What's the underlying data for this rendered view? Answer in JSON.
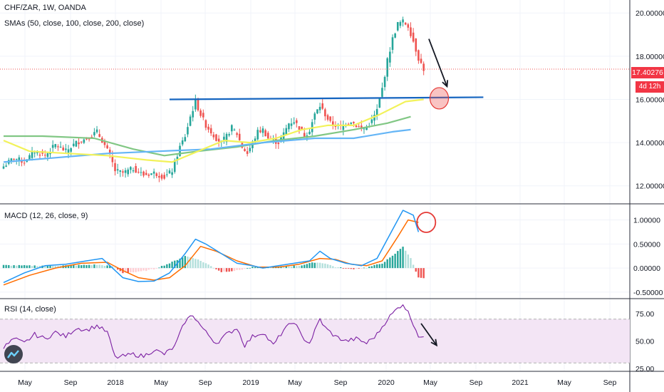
{
  "header": {
    "symbol_line": "CHF/ZAR, 1W, OANDA",
    "sma_line": "SMAs (50, close, 100, close, 200, close)"
  },
  "price_tag": {
    "value": "17.40276",
    "countdown": "4d 12h"
  },
  "macd_legend": "MACD (12, 26, close, 9)",
  "rsi_legend": "RSI (14, close)",
  "colors": {
    "up": "#26a69a",
    "down": "#ef5350",
    "sma50": "#f2f25a",
    "sma100": "#81c784",
    "sma200": "#64b5f6",
    "trendline": "#1565c0",
    "macd": "#2196f3",
    "signal": "#ff6d00",
    "rsi": "#7b1fa2",
    "rsi_band": "#f3e5f5"
  },
  "chart_data": [
    {
      "type": "candlestick",
      "name": "price",
      "ylim": [
        11.2,
        20.6
      ],
      "y_ticks": [
        "20.00000",
        "18.00000",
        "16.00000",
        "14.00000",
        "12.00000"
      ],
      "x_ticks": [
        "May",
        "Sep",
        "2018",
        "May",
        "Sep",
        "2019",
        "May",
        "Sep",
        "2020",
        "May",
        "Sep",
        "2021",
        "May",
        "Sep"
      ],
      "weekly_close_path": [
        [
          0,
          12.9
        ],
        [
          4,
          13.3
        ],
        [
          8,
          13.1
        ],
        [
          12,
          13.6
        ],
        [
          16,
          13.4
        ],
        [
          20,
          13.9
        ],
        [
          24,
          13.6
        ],
        [
          28,
          14.0
        ],
        [
          32,
          14.2
        ],
        [
          36,
          14.5
        ],
        [
          38,
          14.1
        ],
        [
          41,
          13.4
        ],
        [
          43,
          12.7
        ],
        [
          46,
          12.6
        ],
        [
          50,
          12.8
        ],
        [
          54,
          12.5
        ],
        [
          58,
          12.6
        ],
        [
          62,
          12.4
        ],
        [
          65,
          12.7
        ],
        [
          68,
          13.8
        ],
        [
          70,
          14.3
        ],
        [
          72,
          15.2
        ],
        [
          74,
          15.9
        ],
        [
          76,
          15.3
        ],
        [
          78,
          14.8
        ],
        [
          80,
          14.5
        ],
        [
          82,
          14.2
        ],
        [
          84,
          14.0
        ],
        [
          86,
          14.3
        ],
        [
          88,
          14.7
        ],
        [
          90,
          14.4
        ],
        [
          92,
          13.8
        ],
        [
          94,
          13.5
        ],
        [
          96,
          14.0
        ],
        [
          98,
          14.5
        ],
        [
          100,
          14.6
        ],
        [
          102,
          14.2
        ],
        [
          104,
          14.1
        ],
        [
          106,
          14.0
        ],
        [
          108,
          14.4
        ],
        [
          110,
          14.9
        ],
        [
          112,
          15.0
        ],
        [
          114,
          14.7
        ],
        [
          116,
          14.3
        ],
        [
          118,
          14.6
        ],
        [
          120,
          15.3
        ],
        [
          122,
          15.7
        ],
        [
          124,
          15.3
        ],
        [
          126,
          14.9
        ],
        [
          128,
          14.8
        ],
        [
          130,
          14.7
        ],
        [
          132,
          14.9
        ],
        [
          134,
          15.0
        ],
        [
          136,
          14.8
        ],
        [
          138,
          14.6
        ],
        [
          140,
          14.7
        ],
        [
          142,
          15.0
        ],
        [
          144,
          15.5
        ],
        [
          146,
          16.5
        ],
        [
          148,
          17.8
        ],
        [
          150,
          18.8
        ],
        [
          152,
          19.5
        ],
        [
          154,
          19.6
        ],
        [
          156,
          19.4
        ],
        [
          158,
          18.7
        ],
        [
          160,
          17.9
        ],
        [
          162,
          17.4
        ]
      ],
      "sma50_path": [
        [
          0,
          14.1
        ],
        [
          10,
          13.6
        ],
        [
          25,
          13.5
        ],
        [
          40,
          13.4
        ],
        [
          55,
          13.2
        ],
        [
          65,
          13.1
        ],
        [
          75,
          13.6
        ],
        [
          85,
          14.1
        ],
        [
          95,
          14.0
        ],
        [
          105,
          14.2
        ],
        [
          115,
          14.6
        ],
        [
          125,
          14.8
        ],
        [
          135,
          14.8
        ],
        [
          145,
          15.3
        ],
        [
          155,
          15.9
        ],
        [
          162,
          16.0
        ]
      ],
      "sma100_path": [
        [
          0,
          14.3
        ],
        [
          15,
          14.3
        ],
        [
          35,
          14.2
        ],
        [
          50,
          13.7
        ],
        [
          62,
          13.4
        ],
        [
          75,
          13.6
        ],
        [
          90,
          13.8
        ],
        [
          105,
          14.1
        ],
        [
          120,
          14.3
        ],
        [
          135,
          14.6
        ],
        [
          148,
          14.9
        ],
        [
          157,
          15.2
        ]
      ],
      "sma200_path": [
        [
          0,
          13.1
        ],
        [
          20,
          13.3
        ],
        [
          40,
          13.5
        ],
        [
          60,
          13.6
        ],
        [
          80,
          13.7
        ],
        [
          100,
          14.0
        ],
        [
          120,
          14.2
        ],
        [
          135,
          14.2
        ],
        [
          150,
          14.5
        ],
        [
          157,
          14.6
        ]
      ],
      "trendline": {
        "from": [
          64,
          16.0
        ],
        "to": [
          185,
          16.1
        ],
        "value": 16.05
      },
      "last_price": 17.40276
    },
    {
      "type": "macd",
      "name": "MACD (12, 26, close, 9)",
      "ylim": [
        -0.62,
        1.32
      ],
      "y_ticks": [
        "1.00000",
        "0.50000",
        "0.00000",
        "-0.50000"
      ],
      "macd_path": [
        [
          0,
          -0.3
        ],
        [
          8,
          -0.1
        ],
        [
          16,
          0.05
        ],
        [
          24,
          0.08
        ],
        [
          32,
          0.15
        ],
        [
          38,
          0.2
        ],
        [
          42,
          0.0
        ],
        [
          46,
          -0.2
        ],
        [
          52,
          -0.28
        ],
        [
          58,
          -0.27
        ],
        [
          64,
          -0.1
        ],
        [
          70,
          0.3
        ],
        [
          74,
          0.6
        ],
        [
          78,
          0.5
        ],
        [
          84,
          0.3
        ],
        [
          90,
          0.1
        ],
        [
          96,
          0.05
        ],
        [
          100,
          0.0
        ],
        [
          106,
          0.05
        ],
        [
          112,
          0.1
        ],
        [
          118,
          0.15
        ],
        [
          122,
          0.35
        ],
        [
          126,
          0.2
        ],
        [
          132,
          0.1
        ],
        [
          138,
          0.05
        ],
        [
          144,
          0.2
        ],
        [
          150,
          0.8
        ],
        [
          154,
          1.2
        ],
        [
          158,
          1.1
        ],
        [
          160,
          0.75
        ]
      ],
      "signal_path": [
        [
          0,
          -0.35
        ],
        [
          10,
          -0.15
        ],
        [
          20,
          0.0
        ],
        [
          30,
          0.1
        ],
        [
          40,
          0.12
        ],
        [
          46,
          -0.05
        ],
        [
          52,
          -0.2
        ],
        [
          58,
          -0.25
        ],
        [
          64,
          -0.2
        ],
        [
          70,
          0.05
        ],
        [
          76,
          0.45
        ],
        [
          82,
          0.35
        ],
        [
          90,
          0.15
        ],
        [
          98,
          0.02
        ],
        [
          106,
          0.02
        ],
        [
          114,
          0.08
        ],
        [
          122,
          0.2
        ],
        [
          128,
          0.18
        ],
        [
          134,
          0.08
        ],
        [
          140,
          0.05
        ],
        [
          146,
          0.15
        ],
        [
          152,
          0.65
        ],
        [
          156,
          1.0
        ],
        [
          160,
          0.95
        ]
      ],
      "histogram_path": [
        [
          0,
          0.06
        ],
        [
          10,
          0.05
        ],
        [
          20,
          0.05
        ],
        [
          30,
          0.06
        ],
        [
          36,
          0.07
        ],
        [
          42,
          0.04
        ],
        [
          46,
          -0.1
        ],
        [
          52,
          -0.08
        ],
        [
          58,
          -0.02
        ],
        [
          64,
          0.1
        ],
        [
          70,
          0.25
        ],
        [
          74,
          0.2
        ],
        [
          78,
          0.1
        ],
        [
          84,
          -0.08
        ],
        [
          90,
          -0.05
        ],
        [
          96,
          0.02
        ],
        [
          106,
          0.03
        ],
        [
          114,
          0.05
        ],
        [
          120,
          0.12
        ],
        [
          124,
          0.1
        ],
        [
          128,
          0.02
        ],
        [
          134,
          -0.02
        ],
        [
          140,
          0.01
        ],
        [
          146,
          0.1
        ],
        [
          150,
          0.25
        ],
        [
          154,
          0.45
        ],
        [
          157,
          0.2
        ],
        [
          160,
          -0.2
        ]
      ]
    },
    {
      "type": "rsi",
      "name": "RSI (14, close)",
      "ylim": [
        23,
        88
      ],
      "y_ticks": [
        "75.00",
        "50.00",
        "25.00"
      ],
      "band": [
        30,
        70
      ],
      "rsi_path": [
        [
          0,
          44
        ],
        [
          4,
          52
        ],
        [
          8,
          48
        ],
        [
          12,
          56
        ],
        [
          16,
          52
        ],
        [
          20,
          58
        ],
        [
          24,
          54
        ],
        [
          28,
          62
        ],
        [
          32,
          60
        ],
        [
          36,
          64
        ],
        [
          40,
          58
        ],
        [
          43,
          35
        ],
        [
          46,
          36
        ],
        [
          50,
          38
        ],
        [
          54,
          36
        ],
        [
          58,
          42
        ],
        [
          62,
          38
        ],
        [
          66,
          45
        ],
        [
          70,
          68
        ],
        [
          73,
          74
        ],
        [
          76,
          64
        ],
        [
          78,
          58
        ],
        [
          82,
          48
        ],
        [
          86,
          56
        ],
        [
          90,
          62
        ],
        [
          93,
          46
        ],
        [
          96,
          54
        ],
        [
          100,
          58
        ],
        [
          104,
          46
        ],
        [
          108,
          60
        ],
        [
          112,
          68
        ],
        [
          115,
          54
        ],
        [
          118,
          48
        ],
        [
          122,
          70
        ],
        [
          124,
          62
        ],
        [
          128,
          54
        ],
        [
          132,
          50
        ],
        [
          136,
          52
        ],
        [
          140,
          48
        ],
        [
          144,
          56
        ],
        [
          148,
          70
        ],
        [
          152,
          80
        ],
        [
          154,
          84
        ],
        [
          156,
          76
        ],
        [
          158,
          66
        ],
        [
          160,
          55
        ],
        [
          162,
          52
        ]
      ]
    }
  ],
  "annotations": {
    "price_arrow": {
      "from": [
        164,
        18.8
      ],
      "to": [
        171,
        16.6
      ]
    },
    "price_ellipse": {
      "center": [
        168,
        16.05
      ]
    },
    "macd_circle": {
      "center": [
        163,
        0.95
      ]
    },
    "rsi_arrow": {
      "from": [
        161,
        66
      ],
      "to": [
        167,
        46
      ]
    }
  }
}
